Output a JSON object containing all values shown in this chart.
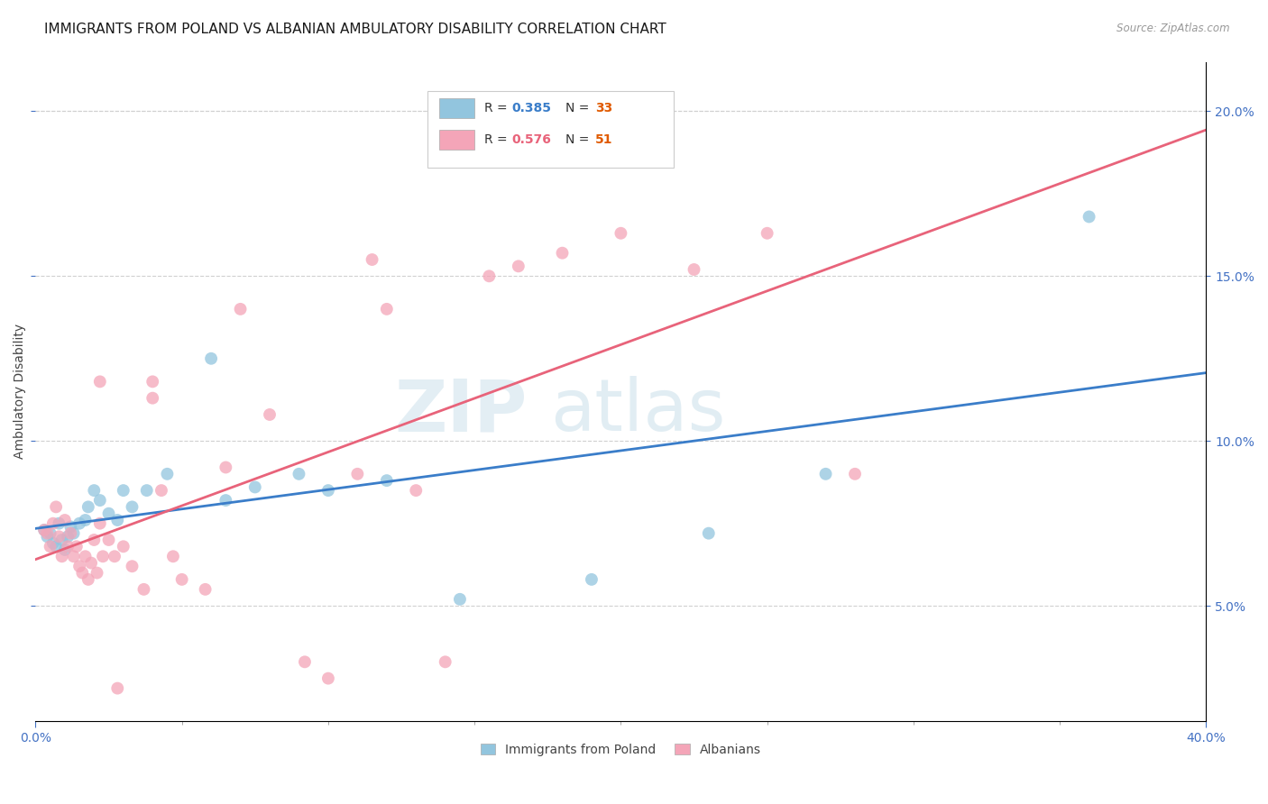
{
  "title": "IMMIGRANTS FROM POLAND VS ALBANIAN AMBULATORY DISABILITY CORRELATION CHART",
  "source_text": "Source: ZipAtlas.com",
  "ylabel": "Ambulatory Disability",
  "xlim": [
    0.0,
    0.4
  ],
  "ylim": [
    0.015,
    0.215
  ],
  "yticks": [
    0.05,
    0.1,
    0.15,
    0.2
  ],
  "xticks_major": [
    0.0,
    0.4
  ],
  "xticks_minor": [
    0.05,
    0.1,
    0.15,
    0.2,
    0.25,
    0.3,
    0.35
  ],
  "blue_color": "#92c5de",
  "pink_color": "#f4a5b8",
  "blue_line_color": "#3a7dc9",
  "pink_line_color": "#e8637a",
  "legend_r_blue": "R = 0.385",
  "legend_n_blue": "N = 33",
  "legend_r_pink": "R = 0.576",
  "legend_n_pink": "N = 51",
  "label_blue": "Immigrants from Poland",
  "label_pink": "Albanians",
  "blue_x": [
    0.003,
    0.004,
    0.005,
    0.006,
    0.007,
    0.008,
    0.009,
    0.01,
    0.011,
    0.012,
    0.013,
    0.015,
    0.017,
    0.018,
    0.02,
    0.022,
    0.025,
    0.028,
    0.03,
    0.033,
    0.038,
    0.045,
    0.06,
    0.065,
    0.075,
    0.09,
    0.1,
    0.12,
    0.145,
    0.19,
    0.23,
    0.27,
    0.36
  ],
  "blue_y": [
    0.073,
    0.071,
    0.072,
    0.069,
    0.068,
    0.075,
    0.07,
    0.067,
    0.071,
    0.074,
    0.072,
    0.075,
    0.076,
    0.08,
    0.085,
    0.082,
    0.078,
    0.076,
    0.085,
    0.08,
    0.085,
    0.09,
    0.125,
    0.082,
    0.086,
    0.09,
    0.085,
    0.088,
    0.052,
    0.058,
    0.072,
    0.09,
    0.168
  ],
  "pink_x": [
    0.003,
    0.004,
    0.005,
    0.006,
    0.007,
    0.008,
    0.009,
    0.01,
    0.011,
    0.012,
    0.013,
    0.014,
    0.015,
    0.016,
    0.017,
    0.018,
    0.019,
    0.02,
    0.021,
    0.022,
    0.023,
    0.025,
    0.027,
    0.03,
    0.033,
    0.037,
    0.04,
    0.043,
    0.047,
    0.05,
    0.058,
    0.065,
    0.07,
    0.08,
    0.092,
    0.1,
    0.11,
    0.12,
    0.13,
    0.14,
    0.155,
    0.165,
    0.18,
    0.2,
    0.225,
    0.25,
    0.28,
    0.115,
    0.04,
    0.028,
    0.022
  ],
  "pink_y": [
    0.073,
    0.072,
    0.068,
    0.075,
    0.08,
    0.071,
    0.065,
    0.076,
    0.068,
    0.072,
    0.065,
    0.068,
    0.062,
    0.06,
    0.065,
    0.058,
    0.063,
    0.07,
    0.06,
    0.075,
    0.065,
    0.07,
    0.065,
    0.068,
    0.062,
    0.055,
    0.118,
    0.085,
    0.065,
    0.058,
    0.055,
    0.092,
    0.14,
    0.108,
    0.033,
    0.028,
    0.09,
    0.14,
    0.085,
    0.033,
    0.15,
    0.153,
    0.157,
    0.163,
    0.152,
    0.163,
    0.09,
    0.155,
    0.113,
    0.025,
    0.118
  ],
  "watermark_zip": "ZIP",
  "watermark_atlas": "atlas",
  "title_fontsize": 11,
  "axis_label_fontsize": 10,
  "tick_fontsize": 10,
  "tick_color": "#4472c4",
  "background_color": "#ffffff",
  "grid_color": "#d0d0d0"
}
